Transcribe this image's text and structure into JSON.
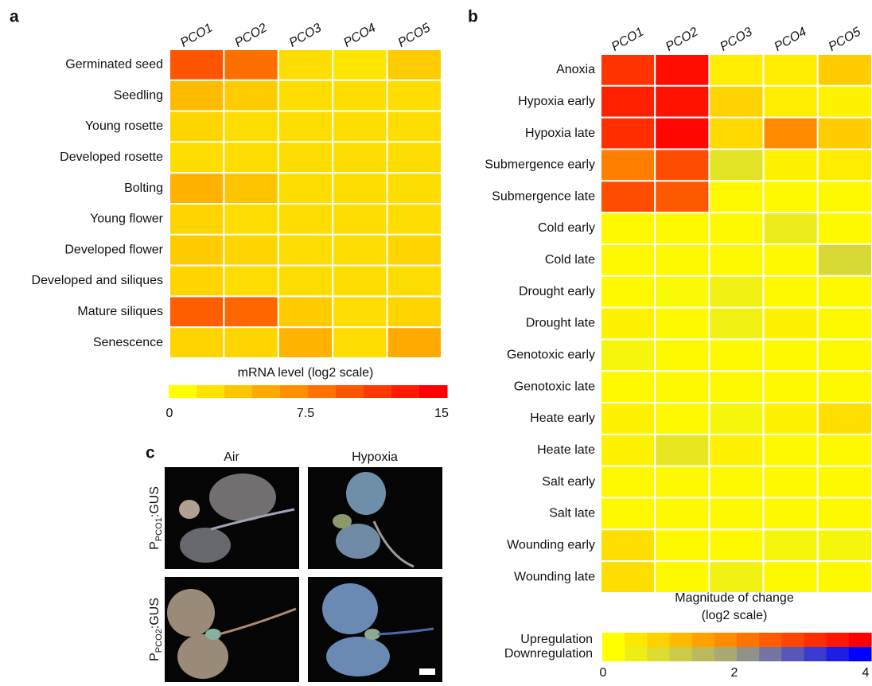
{
  "chart_data": [
    {
      "type": "heatmap",
      "panel_label": "a",
      "columns": [
        "PCO1",
        "PCO2",
        "PCO3",
        "PCO4",
        "PCO5"
      ],
      "rows": [
        "Germinated seed",
        "Seedling",
        "Young rosette",
        "Developed rosette",
        "Bolting",
        "Young flower",
        "Developed flower",
        "Developed and siliques",
        "Mature siliques",
        "Senescence"
      ],
      "values": [
        [
          10,
          8.5,
          2,
          1.5,
          3
        ],
        [
          4,
          3,
          2,
          2,
          2
        ],
        [
          2.5,
          2,
          2,
          2,
          2
        ],
        [
          2,
          2,
          2,
          2,
          2
        ],
        [
          4.5,
          3.5,
          2,
          2,
          2
        ],
        [
          2.5,
          2,
          2,
          2,
          2
        ],
        [
          3,
          2.5,
          2,
          2,
          2.5
        ],
        [
          2.5,
          2,
          2,
          2,
          2
        ],
        [
          9.5,
          9,
          3,
          2,
          2.5
        ],
        [
          2.5,
          2.5,
          4.5,
          2,
          5
        ]
      ],
      "colorbar_title": "mRNA level (log2 scale)",
      "clim": [
        0,
        15
      ],
      "cticks": [
        0,
        7.5,
        15
      ],
      "colors": [
        "#ffff00",
        "#ff0000"
      ]
    },
    {
      "type": "heatmap",
      "panel_label": "b",
      "columns": [
        "PCO1",
        "PCO2",
        "PCO3",
        "PCO4",
        "PCO5"
      ],
      "rows": [
        "Anoxia",
        "Hypoxia early",
        "Hypoxia late",
        "Submergence early",
        "Submergence late",
        "Cold early",
        "Cold late",
        "Drought early",
        "Drought late",
        "Genotoxic early",
        "Genotoxic late",
        "Heate early",
        "Heate late",
        "Salt early",
        "Salt late",
        "Wounding early",
        "Wounding late"
      ],
      "values": [
        [
          3.2,
          3.8,
          0.3,
          0.3,
          0.8
        ],
        [
          3.5,
          3.7,
          0.7,
          0.3,
          0.2
        ],
        [
          3.3,
          3.9,
          0.6,
          1.8,
          0.8
        ],
        [
          2.0,
          2.8,
          -0.6,
          0.2,
          0.3
        ],
        [
          2.8,
          2.6,
          0.1,
          0.1,
          0.1
        ],
        [
          0.1,
          0.1,
          0.1,
          -0.4,
          0.1
        ],
        [
          0.1,
          0.1,
          0.1,
          0.1,
          -0.8
        ],
        [
          0.1,
          -0.1,
          -0.3,
          0.1,
          0.1
        ],
        [
          0.2,
          0.1,
          -0.3,
          0.2,
          0.1
        ],
        [
          -0.2,
          0.1,
          0.1,
          0.1,
          0.1
        ],
        [
          0.1,
          0.1,
          0.1,
          0.1,
          0.1
        ],
        [
          0.2,
          0.1,
          -0.2,
          0.2,
          0.5
        ],
        [
          0.2,
          -0.5,
          0.2,
          0.1,
          0.1
        ],
        [
          0.1,
          0.1,
          0.1,
          0.1,
          0.1
        ],
        [
          0.1,
          0.1,
          0.1,
          0.1,
          0.1
        ],
        [
          0.5,
          0.1,
          0.1,
          -0.2,
          -0.2
        ],
        [
          0.5,
          0.1,
          -0.3,
          0.1,
          0.1
        ]
      ],
      "colorbar_title": [
        "Magnitude of change",
        "(log2 scale)"
      ],
      "colorbar_rows": [
        "Upregulation",
        "Downregulation"
      ],
      "clim": [
        0,
        4
      ],
      "cticks": [
        0,
        2,
        4
      ],
      "colors": [
        "#ffff00",
        "#ff0000"
      ],
      "down_colors": [
        "#ffff00",
        "#a0a080",
        "#0000ff"
      ]
    }
  ],
  "panel_c": {
    "label": "c",
    "columns": [
      "Air",
      "Hypoxia"
    ],
    "rows": [
      {
        "prefix": "P",
        "sub": "PCO1",
        "suffix": ":GUS"
      },
      {
        "prefix": "P",
        "sub": "PCO2",
        "suffix": ":GUS"
      }
    ]
  }
}
